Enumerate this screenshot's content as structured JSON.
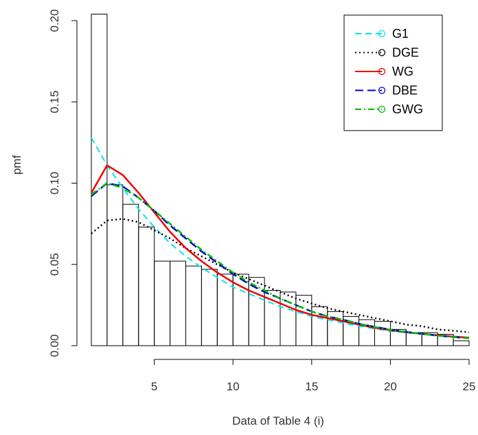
{
  "chart_data": {
    "type": "bar",
    "title": "",
    "xlabel": "Data of Table 4 (i)",
    "ylabel": "pmf",
    "xlim": [
      1,
      25
    ],
    "ylim": [
      0,
      0.2
    ],
    "x_ticks": [
      5,
      10,
      15,
      20,
      25
    ],
    "y_ticks": [
      0.0,
      0.05,
      0.1,
      0.15,
      0.2
    ],
    "x_tick_labels": [
      "5",
      "10",
      "15",
      "20",
      "25"
    ],
    "y_tick_labels": [
      "0.00",
      "0.05",
      "0.10",
      "0.15",
      "0.20"
    ],
    "grid": false,
    "legend_position": "top-right",
    "histogram": {
      "bin_starts": [
        1,
        2,
        3,
        4,
        5,
        6,
        7,
        8,
        9,
        10,
        11,
        12,
        13,
        14,
        15,
        16,
        17,
        18,
        19,
        20,
        21,
        22,
        23,
        24
      ],
      "bin_width": 1,
      "values": [
        0.204,
        0.099,
        0.087,
        0.073,
        0.052,
        0.052,
        0.049,
        0.047,
        0.044,
        0.044,
        0.042,
        0.034,
        0.033,
        0.031,
        0.024,
        0.021,
        0.018,
        0.016,
        0.015,
        0.01,
        0.008,
        0.008,
        0.007,
        0.003
      ],
      "color": "#000000"
    },
    "series": [
      {
        "name": "G1",
        "color": "#00e5ee",
        "dash": "9,6",
        "width": 2,
        "x": [
          1,
          2,
          3,
          4,
          5,
          6,
          7,
          8,
          9,
          10,
          11,
          12,
          13,
          14,
          15,
          16,
          17,
          18,
          19,
          20,
          21,
          22,
          23,
          24,
          25
        ],
        "values": [
          0.128,
          0.111,
          0.097,
          0.084,
          0.073,
          0.063,
          0.055,
          0.048,
          0.042,
          0.036,
          0.032,
          0.028,
          0.024,
          0.021,
          0.018,
          0.016,
          0.014,
          0.012,
          0.0105,
          0.009,
          0.008,
          0.007,
          0.006,
          0.0053,
          0.0046
        ]
      },
      {
        "name": "DGE",
        "color": "#000000",
        "dash": "2,4",
        "width": 2.5,
        "x": [
          1,
          2,
          3,
          4,
          5,
          6,
          7,
          8,
          9,
          10,
          11,
          12,
          13,
          14,
          15,
          16,
          17,
          18,
          19,
          20,
          21,
          22,
          23,
          24,
          25
        ],
        "values": [
          0.069,
          0.077,
          0.078,
          0.076,
          0.071,
          0.066,
          0.06,
          0.055,
          0.05,
          0.045,
          0.041,
          0.037,
          0.033,
          0.029,
          0.026,
          0.023,
          0.021,
          0.019,
          0.017,
          0.015,
          0.013,
          0.012,
          0.01,
          0.0092,
          0.0082
        ]
      },
      {
        "name": "WG",
        "color": "#ee0000",
        "dash": "",
        "width": 2.5,
        "x": [
          1,
          2,
          3,
          4,
          5,
          6,
          7,
          8,
          9,
          10,
          11,
          12,
          13,
          14,
          15,
          16,
          17,
          18,
          19,
          20,
          21,
          22,
          23,
          24,
          25
        ],
        "values": [
          0.094,
          0.111,
          0.105,
          0.094,
          0.082,
          0.07,
          0.06,
          0.052,
          0.045,
          0.039,
          0.034,
          0.03,
          0.026,
          0.022,
          0.019,
          0.017,
          0.015,
          0.013,
          0.011,
          0.0095,
          0.0083,
          0.0073,
          0.0064,
          0.0056,
          0.0049
        ]
      },
      {
        "name": "DBE",
        "color": "#0000cc",
        "dash": "12,6",
        "width": 2.5,
        "x": [
          1,
          2,
          3,
          4,
          5,
          6,
          7,
          8,
          9,
          10,
          11,
          12,
          13,
          14,
          15,
          16,
          17,
          18,
          19,
          20,
          21,
          22,
          23,
          24,
          25
        ],
        "values": [
          0.092,
          0.1,
          0.098,
          0.091,
          0.083,
          0.074,
          0.066,
          0.058,
          0.051,
          0.044,
          0.038,
          0.033,
          0.029,
          0.025,
          0.021,
          0.018,
          0.016,
          0.0135,
          0.0116,
          0.0099,
          0.0085,
          0.0073,
          0.0062,
          0.0053,
          0.0046
        ]
      },
      {
        "name": "GWG",
        "color": "#00bb00",
        "dash": "9,4,2,4",
        "width": 2.5,
        "x": [
          1,
          2,
          3,
          4,
          5,
          6,
          7,
          8,
          9,
          10,
          11,
          12,
          13,
          14,
          15,
          16,
          17,
          18,
          19,
          20,
          21,
          22,
          23,
          24,
          25
        ],
        "values": [
          0.093,
          0.1,
          0.097,
          0.091,
          0.083,
          0.075,
          0.067,
          0.059,
          0.052,
          0.045,
          0.039,
          0.034,
          0.029,
          0.025,
          0.021,
          0.018,
          0.016,
          0.0135,
          0.0115,
          0.0098,
          0.0084,
          0.0072,
          0.0062,
          0.0053,
          0.0046
        ]
      }
    ]
  }
}
